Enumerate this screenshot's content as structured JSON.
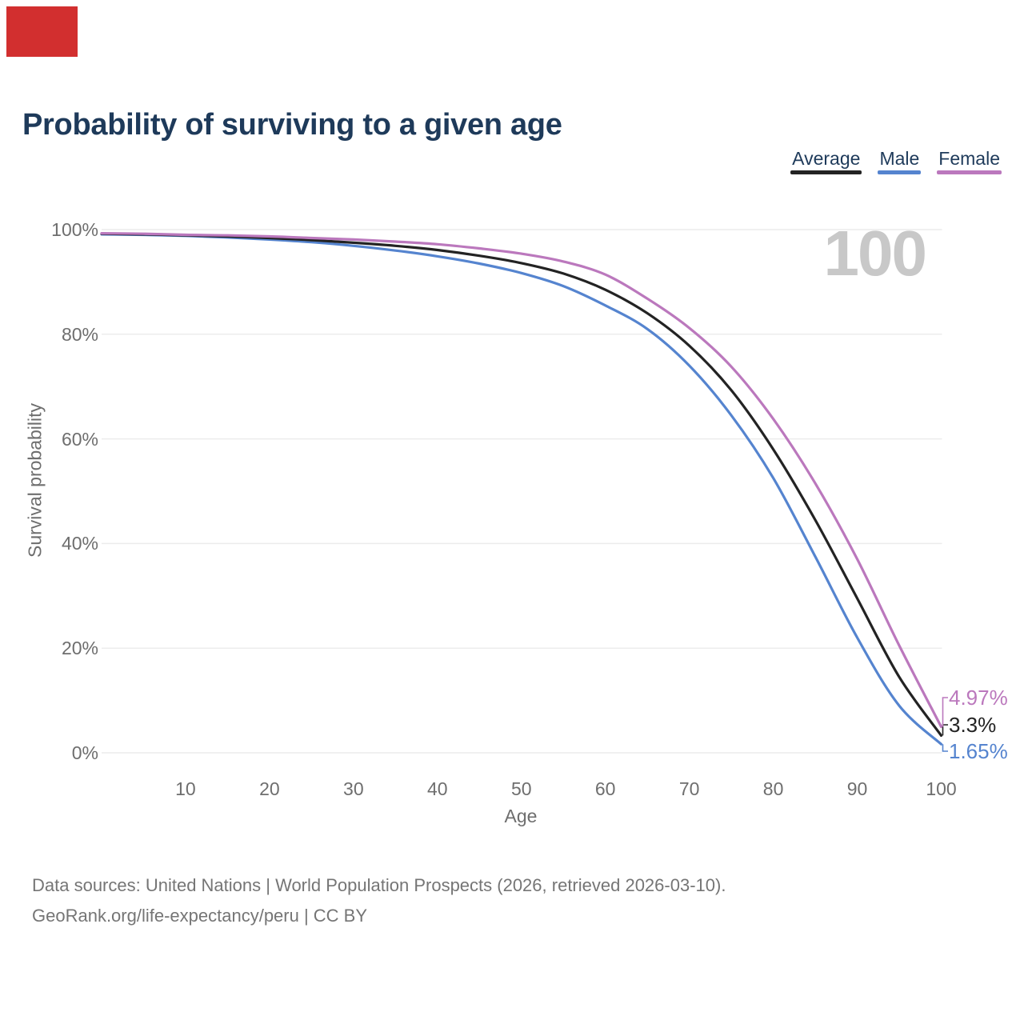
{
  "annotation": {
    "color": "#d22f2f"
  },
  "title": "Probability of surviving to a given age",
  "colors": {
    "title_text": "#1e3a5a",
    "legend_text": "#1e3a5a",
    "average": "#232323",
    "male": "#5584cf",
    "female": "#bb78bd",
    "gridline": "#ececec",
    "tick_text": "#6e6e6e",
    "watermark": "#c8c8c8",
    "footer_text": "#757575"
  },
  "legend": {
    "items": [
      {
        "label": "Average",
        "color": "#232323"
      },
      {
        "label": "Male",
        "color": "#5584cf"
      },
      {
        "label": "Female",
        "color": "#bb78bd"
      }
    ]
  },
  "watermark": "100",
  "footer": {
    "line1": "Data sources: United Nations | World Population Prospects (2026, retrieved 2026-03-10).",
    "line2": "GeoRank.org/life-expectancy/peru | CC BY"
  },
  "chart_data": {
    "type": "line",
    "title": "Probability of surviving to a given age",
    "xlabel": "Age",
    "ylabel": "Survival probability",
    "xlim": [
      0,
      100
    ],
    "ylim": [
      0,
      100
    ],
    "grid": "horizontal",
    "legend_position": "top-right",
    "x_ticks": [
      10,
      20,
      30,
      40,
      50,
      60,
      70,
      80,
      90,
      100
    ],
    "y_ticks": [
      {
        "value": 0,
        "label": "0%"
      },
      {
        "value": 20,
        "label": "20%"
      },
      {
        "value": 40,
        "label": "40%"
      },
      {
        "value": 60,
        "label": "60%"
      },
      {
        "value": 80,
        "label": "80%"
      },
      {
        "value": 100,
        "label": "100%"
      }
    ],
    "x": [
      0,
      5,
      10,
      15,
      20,
      25,
      30,
      35,
      40,
      45,
      50,
      55,
      60,
      65,
      70,
      75,
      80,
      85,
      90,
      95,
      100
    ],
    "series": [
      {
        "name": "Average",
        "color": "#232323",
        "end_label": "3.3%",
        "values": [
          99.2,
          99.1,
          98.9,
          98.7,
          98.4,
          98.0,
          97.5,
          96.9,
          96.1,
          95.0,
          93.6,
          91.6,
          88.5,
          84.0,
          77.8,
          69.3,
          58.0,
          44.5,
          29.5,
          14.5,
          3.3
        ]
      },
      {
        "name": "Male",
        "color": "#5584cf",
        "end_label": "1.65%",
        "values": [
          99.1,
          99.0,
          98.8,
          98.5,
          98.1,
          97.6,
          96.9,
          96.0,
          94.9,
          93.5,
          91.7,
          89.2,
          85.5,
          81.0,
          74.0,
          64.5,
          52.5,
          37.5,
          22.0,
          9.0,
          1.65
        ]
      },
      {
        "name": "Female",
        "color": "#bb78bd",
        "end_label": "4.97%",
        "values": [
          99.3,
          99.2,
          99.0,
          98.9,
          98.7,
          98.4,
          98.1,
          97.7,
          97.2,
          96.4,
          95.4,
          93.9,
          91.4,
          86.8,
          81.2,
          73.8,
          63.8,
          51.5,
          37.0,
          20.5,
          4.97
        ]
      }
    ]
  }
}
